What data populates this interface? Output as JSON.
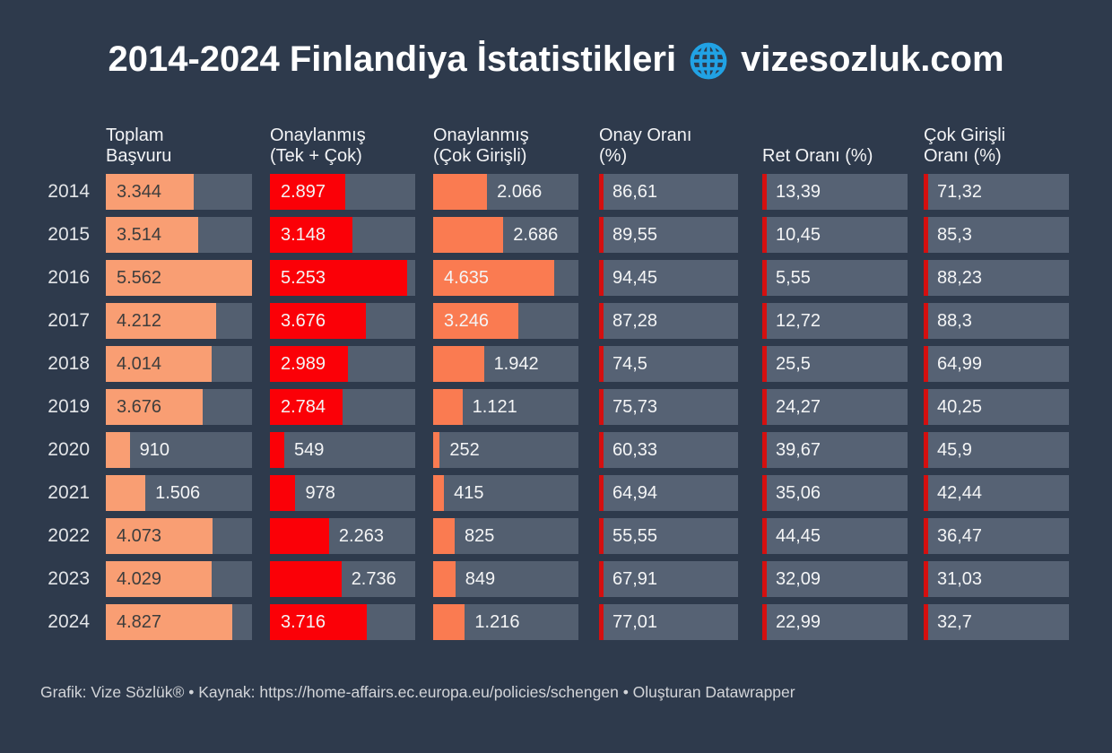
{
  "title": {
    "range_and_country": "2014-2024 Finlandiya İstatistikleri",
    "site": "vizesozluk.com",
    "globe_icon": "globe-icon",
    "globe_color": "#21A2E4"
  },
  "header": {
    "columns": [
      [
        "Toplam",
        "Başvuru"
      ],
      [
        "Onaylanmış",
        "(Tek + Çok)"
      ],
      [
        "Onaylanmış",
        "(Çok Girişli)"
      ],
      [
        "Onay Oranı",
        "(%)"
      ],
      [
        "Ret Oranı (%)"
      ],
      [
        "Çok Girişli",
        "Oranı (%)"
      ]
    ]
  },
  "colors": {
    "background": "#2E3A4C",
    "bar_track": "#535F70",
    "pct_cell_bg": "#566274",
    "toplam_bar": "#F99E73",
    "onaylanmis_bar": "#FB0007",
    "cok_girisli_bar": "#FA7B51",
    "accent_red": "#D50F0F",
    "value_light": "#F4F5F6",
    "value_dark": "#3D3D3D"
  },
  "chart_data": {
    "type": "table",
    "title": "2014-2024 Finlandiya İstatistikleri vizesozluk.com",
    "categories": [
      "2014",
      "2015",
      "2016",
      "2017",
      "2018",
      "2019",
      "2020",
      "2021",
      "2022",
      "2023",
      "2024"
    ],
    "bar_scale_max": 5562,
    "legend_position": "none",
    "grid": false,
    "series": [
      {
        "name": "Toplam Başvuru",
        "kind": "bar",
        "bar_color": "#F99E73",
        "values": [
          3344,
          3514,
          5562,
          4212,
          4014,
          3676,
          910,
          1506,
          4073,
          4029,
          4827
        ],
        "display": [
          "3.344",
          "3.514",
          "5.562",
          "4.212",
          "4.014",
          "3.676",
          "910",
          "1.506",
          "4.073",
          "4.029",
          "4.827"
        ],
        "label_pos": [
          "inside",
          "inside",
          "inside",
          "inside",
          "inside",
          "inside",
          "outside",
          "outside",
          "inside",
          "inside",
          "inside"
        ],
        "label_style": [
          "dark",
          "dark",
          "dark",
          "dark",
          "dark",
          "dark",
          "light",
          "light",
          "dark",
          "dark",
          "dark"
        ]
      },
      {
        "name": "Onaylanmış (Tek + Çok)",
        "kind": "bar",
        "bar_color": "#FB0007",
        "values": [
          2897,
          3148,
          5253,
          3676,
          2989,
          2784,
          549,
          978,
          2263,
          2736,
          3716
        ],
        "display": [
          "2.897",
          "3.148",
          "5.253",
          "3.676",
          "2.989",
          "2.784",
          "549",
          "978",
          "2.263",
          "2.736",
          "3.716"
        ],
        "label_pos": [
          "inside",
          "inside",
          "inside",
          "inside",
          "inside",
          "inside",
          "outside",
          "outside",
          "outside",
          "outside",
          "inside"
        ],
        "label_style": [
          "light",
          "light",
          "light",
          "light",
          "light",
          "light",
          "light",
          "light",
          "light",
          "light",
          "light"
        ]
      },
      {
        "name": "Onaylanmış (Çok Girişli)",
        "kind": "bar",
        "bar_color": "#FA7B51",
        "values": [
          2066,
          2686,
          4635,
          3246,
          1942,
          1121,
          252,
          415,
          825,
          849,
          1216
        ],
        "display": [
          "2.066",
          "2.686",
          "4.635",
          "3.246",
          "1.942",
          "1.121",
          "252",
          "415",
          "825",
          "849",
          "1.216"
        ],
        "label_pos": [
          "outside",
          "outside",
          "inside",
          "inside",
          "outside",
          "outside",
          "outside",
          "outside",
          "outside",
          "outside",
          "outside"
        ],
        "label_style": [
          "light",
          "light",
          "light",
          "light",
          "light",
          "light",
          "light",
          "light",
          "light",
          "light",
          "light"
        ]
      },
      {
        "name": "Onay Oranı (%)",
        "kind": "value",
        "values": [
          86.61,
          89.55,
          94.45,
          87.28,
          74.5,
          75.73,
          60.33,
          64.94,
          55.55,
          67.91,
          77.01
        ],
        "display": [
          "86,61",
          "89,55",
          "94,45",
          "87,28",
          "74,5",
          "75,73",
          "60,33",
          "64,94",
          "55,55",
          "67,91",
          "77,01"
        ]
      },
      {
        "name": "Ret Oranı (%)",
        "kind": "value",
        "values": [
          13.39,
          10.45,
          5.55,
          12.72,
          25.5,
          24.27,
          39.67,
          35.06,
          44.45,
          32.09,
          22.99
        ],
        "display": [
          "13,39",
          "10,45",
          "5,55",
          "12,72",
          "25,5",
          "24,27",
          "39,67",
          "35,06",
          "44,45",
          "32,09",
          "22,99"
        ]
      },
      {
        "name": "Çok Girişli Oranı (%)",
        "kind": "value",
        "values": [
          71.32,
          85.3,
          88.23,
          88.3,
          64.99,
          40.25,
          45.9,
          42.44,
          36.47,
          31.03,
          32.7
        ],
        "display": [
          "71,32",
          "85,3",
          "88,23",
          "88,3",
          "64,99",
          "40,25",
          "45,9",
          "42,44",
          "36,47",
          "31,03",
          "32,7"
        ]
      }
    ]
  },
  "footer": {
    "text": "Grafik: Vize Sözlük® • Kaynak: https://home-affairs.ec.europa.eu/policies/schengen • Oluşturan Datawrapper"
  }
}
